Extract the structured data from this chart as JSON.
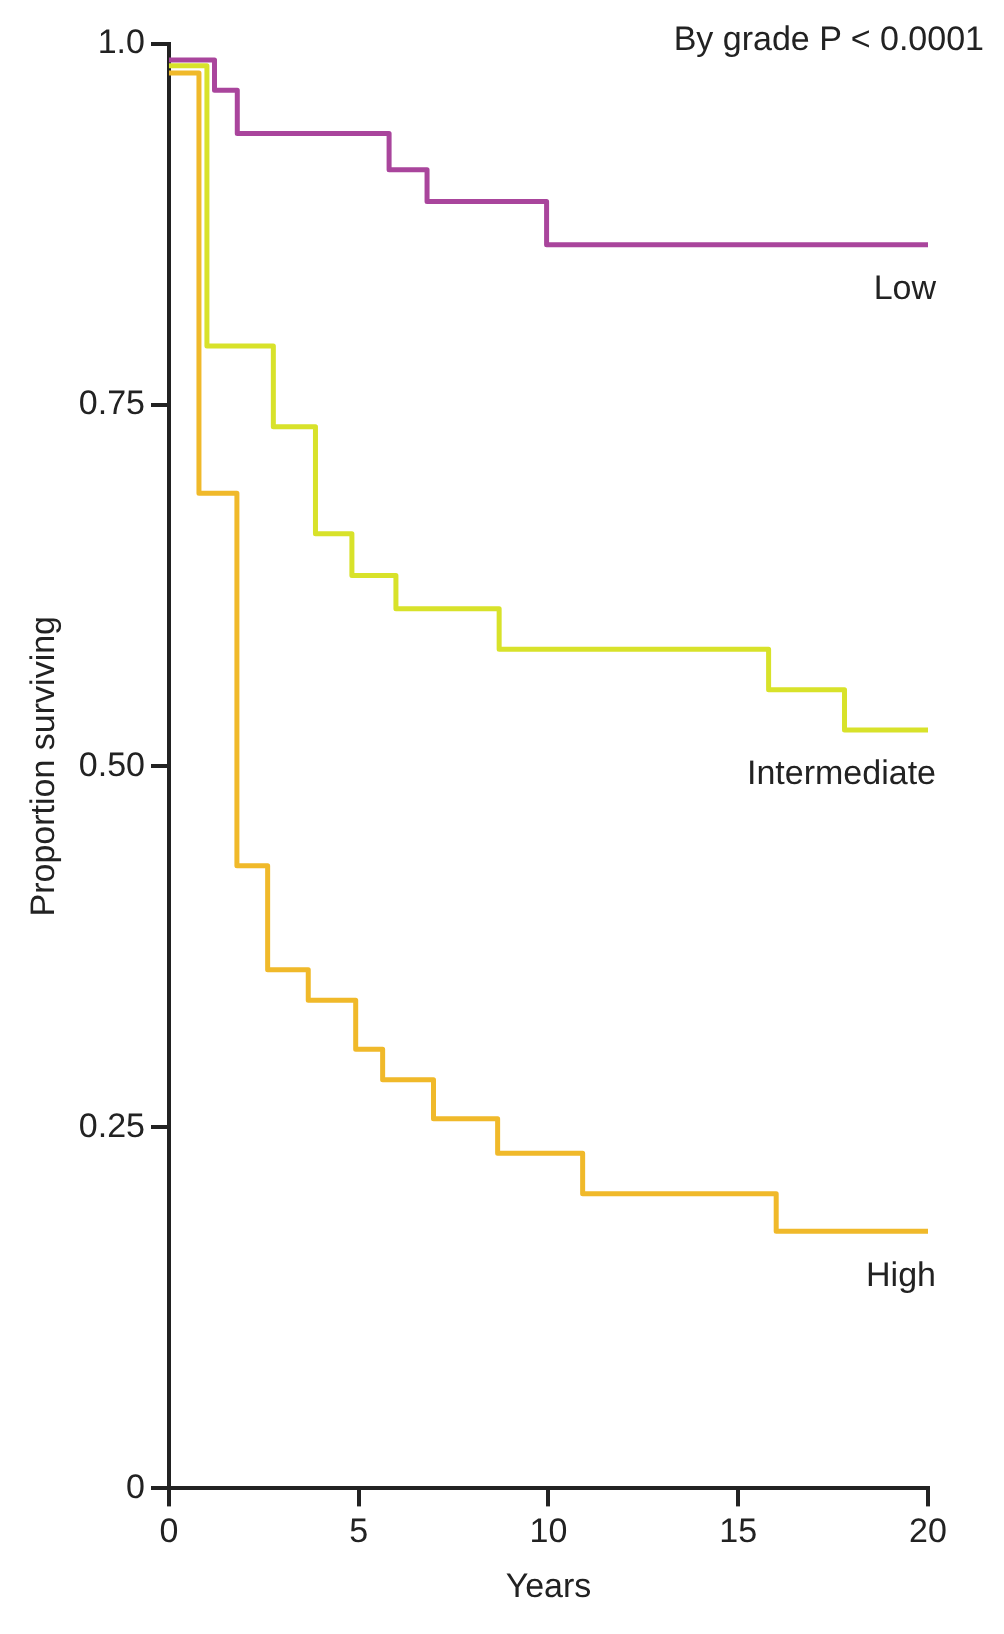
{
  "chart_data": {
    "type": "step",
    "xlabel": "Years",
    "ylabel": "Proportion surviving",
    "annotations": [
      "By grade P < 0.0001"
    ],
    "xlim": [
      0,
      20
    ],
    "xticks": [
      0,
      5,
      10,
      15,
      20
    ],
    "ylim": [
      0,
      1
    ],
    "yticks": [
      {
        "value": 0,
        "label": "0"
      },
      0.25,
      {
        "value": 0.5,
        "label": "0.50"
      },
      0.75,
      {
        "value": 1,
        "label": "1.0"
      }
    ],
    "grid": false,
    "legend": false,
    "line_style": "solid",
    "marker": "none",
    "series": [
      {
        "name": "Low",
        "color": "#a9459c",
        "x": [
          0,
          1.2,
          1.8,
          5.8,
          6.8,
          9.95,
          20
        ],
        "values": [
          0.989,
          0.968,
          0.938,
          0.913,
          0.891,
          0.861,
          0.861
        ]
      },
      {
        "name": "Intermediate",
        "color": "#d8e22a",
        "x": [
          0,
          1.0,
          2.75,
          3.86,
          4.82,
          5.98,
          8.7,
          15.8,
          17.8,
          20
        ],
        "values": [
          0.985,
          0.791,
          0.735,
          0.661,
          0.632,
          0.609,
          0.581,
          0.553,
          0.525,
          0.525
        ]
      },
      {
        "name": "High",
        "color": "#f0b92a",
        "x": [
          0,
          0.79,
          1.79,
          2.6,
          3.67,
          4.92,
          5.63,
          6.97,
          8.66,
          10.9,
          16.0,
          20
        ],
        "values": [
          0.98,
          0.689,
          0.431,
          0.359,
          0.338,
          0.304,
          0.283,
          0.256,
          0.232,
          0.204,
          0.178,
          0.178
        ]
      }
    ]
  }
}
